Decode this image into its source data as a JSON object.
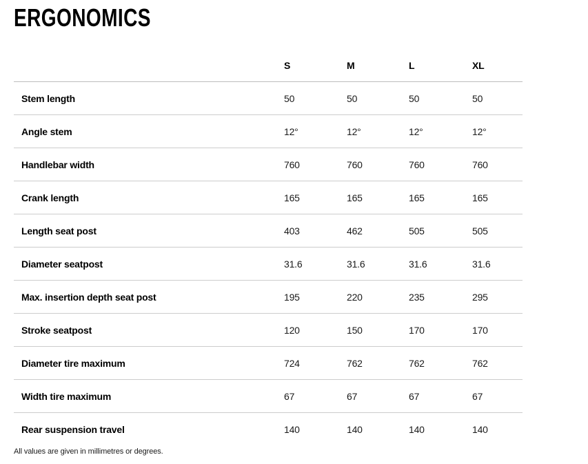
{
  "page": {
    "title": "ERGONOMICS",
    "footnote": "All values are given in millimetres or degrees."
  },
  "spec_table": {
    "size_columns": [
      "S",
      "M",
      "L",
      "XL"
    ],
    "rows": [
      {
        "label": "Stem length",
        "values": [
          "50",
          "50",
          "50",
          "50"
        ]
      },
      {
        "label": "Angle stem",
        "values": [
          "12°",
          "12°",
          "12°",
          "12°"
        ]
      },
      {
        "label": "Handlebar width",
        "values": [
          "760",
          "760",
          "760",
          "760"
        ]
      },
      {
        "label": "Crank length",
        "values": [
          "165",
          "165",
          "165",
          "165"
        ]
      },
      {
        "label": "Length seat post",
        "values": [
          "403",
          "462",
          "505",
          "505"
        ]
      },
      {
        "label": "Diameter seatpost",
        "values": [
          "31.6",
          "31.6",
          "31.6",
          "31.6"
        ]
      },
      {
        "label": "Max. insertion depth seat post",
        "values": [
          "195",
          "220",
          "235",
          "295"
        ]
      },
      {
        "label": "Stroke seatpost",
        "values": [
          "120",
          "150",
          "170",
          "170"
        ]
      },
      {
        "label": "Diameter tire maximum",
        "values": [
          "724",
          "762",
          "762",
          "762"
        ]
      },
      {
        "label": "Width tire maximum",
        "values": [
          "67",
          "67",
          "67",
          "67"
        ]
      },
      {
        "label": "Rear suspension travel",
        "values": [
          "140",
          "140",
          "140",
          "140"
        ]
      }
    ]
  },
  "colors": {
    "background": "#ffffff",
    "heading_text": "#000000",
    "body_text": "#1a1a1a",
    "divider": "#cccccc",
    "header_divider": "#bdbdbd"
  }
}
